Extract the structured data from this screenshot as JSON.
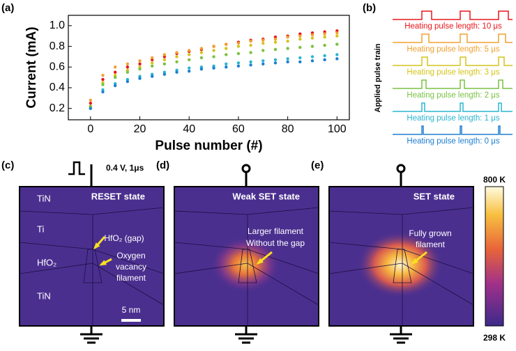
{
  "chart_data": {
    "type": "scatter",
    "panel_label": "(a)",
    "xlabel": "Pulse number (#)",
    "ylabel": "Current (mA)",
    "x": [
      0,
      5,
      10,
      15,
      20,
      25,
      30,
      35,
      40,
      45,
      50,
      55,
      60,
      65,
      70,
      75,
      80,
      85,
      90,
      95,
      100
    ],
    "series": [
      {
        "color": "#e8161b",
        "values": [
          0.25,
          0.48,
          0.55,
          0.6,
          0.63,
          0.67,
          0.7,
          0.73,
          0.75,
          0.77,
          0.8,
          0.82,
          0.84,
          0.86,
          0.87,
          0.89,
          0.9,
          0.92,
          0.93,
          0.94,
          0.95
        ]
      },
      {
        "color": "#f0a030",
        "values": [
          0.28,
          0.52,
          0.6,
          0.63,
          0.66,
          0.69,
          0.72,
          0.74,
          0.76,
          0.78,
          0.8,
          0.82,
          0.83,
          0.85,
          0.86,
          0.87,
          0.89,
          0.9,
          0.91,
          0.92,
          0.93
        ]
      },
      {
        "color": "#d4c41c",
        "values": [
          0.22,
          0.45,
          0.52,
          0.57,
          0.6,
          0.64,
          0.67,
          0.7,
          0.72,
          0.74,
          0.76,
          0.78,
          0.8,
          0.81,
          0.83,
          0.84,
          0.85,
          0.87,
          0.88,
          0.89,
          0.9
        ]
      },
      {
        "color": "#7ac143",
        "values": [
          0.22,
          0.43,
          0.5,
          0.55,
          0.58,
          0.61,
          0.63,
          0.65,
          0.67,
          0.69,
          0.7,
          0.72,
          0.73,
          0.74,
          0.76,
          0.77,
          0.78,
          0.79,
          0.8,
          0.81,
          0.82
        ]
      },
      {
        "color": "#2ab5d0",
        "values": [
          0.2,
          0.38,
          0.44,
          0.48,
          0.51,
          0.53,
          0.55,
          0.57,
          0.59,
          0.6,
          0.61,
          0.63,
          0.64,
          0.65,
          0.66,
          0.67,
          0.68,
          0.69,
          0.7,
          0.71,
          0.72
        ]
      },
      {
        "color": "#1e7fd0",
        "values": [
          0.2,
          0.36,
          0.42,
          0.46,
          0.49,
          0.51,
          0.53,
          0.55,
          0.56,
          0.58,
          0.59,
          0.6,
          0.61,
          0.62,
          0.63,
          0.64,
          0.65,
          0.65,
          0.66,
          0.67,
          0.68
        ]
      }
    ],
    "xlim": [
      -9,
      105
    ],
    "xticks": [
      0,
      20,
      40,
      60,
      80,
      100
    ],
    "ylim": [
      0.09,
      1.1
    ],
    "yticks": [
      0.2,
      0.4,
      0.6,
      0.8,
      {
        "value": 1,
        "label": "1.0"
      }
    ]
  },
  "pulse_train": {
    "panel_label": "(b)",
    "ylabel": "Applied pulse train",
    "items": [
      {
        "label": "Heating pulse length: 10 μs",
        "color": "#e8161b"
      },
      {
        "label": "Heating pulse length: 5 μs",
        "color": "#f0a030"
      },
      {
        "label": "Heating pulse length: 3 μs",
        "color": "#d4c41c"
      },
      {
        "label": "Heating pulse length: 2 μs",
        "color": "#7ac143"
      },
      {
        "label": "Heating pulse length: 1 μs",
        "color": "#2ab5d0"
      },
      {
        "label": "Heating pulse length: 0 μs",
        "color": "#1e7fd0"
      }
    ]
  },
  "read_pulse": "0.4 V, 1μs",
  "simulation_panels": [
    {
      "panel_label": "(c)",
      "state": "RESET state",
      "layers": [
        "TiN",
        "Ti",
        "HfO₂",
        "TiN"
      ],
      "annotations": [
        "HfO₂ (gap)",
        "Oxygen",
        "vacancy",
        "filament"
      ],
      "scale_bar": "5 nm"
    },
    {
      "panel_label": "(d)",
      "state": "Weak SET state",
      "annotations": [
        "Larger filament",
        "Without the gap"
      ]
    },
    {
      "panel_label": "(e)",
      "state": "SET state",
      "annotations": [
        "Fully grown",
        "filament"
      ]
    }
  ],
  "colorbar": {
    "max_label": "800 K",
    "min_label": "298 K"
  }
}
